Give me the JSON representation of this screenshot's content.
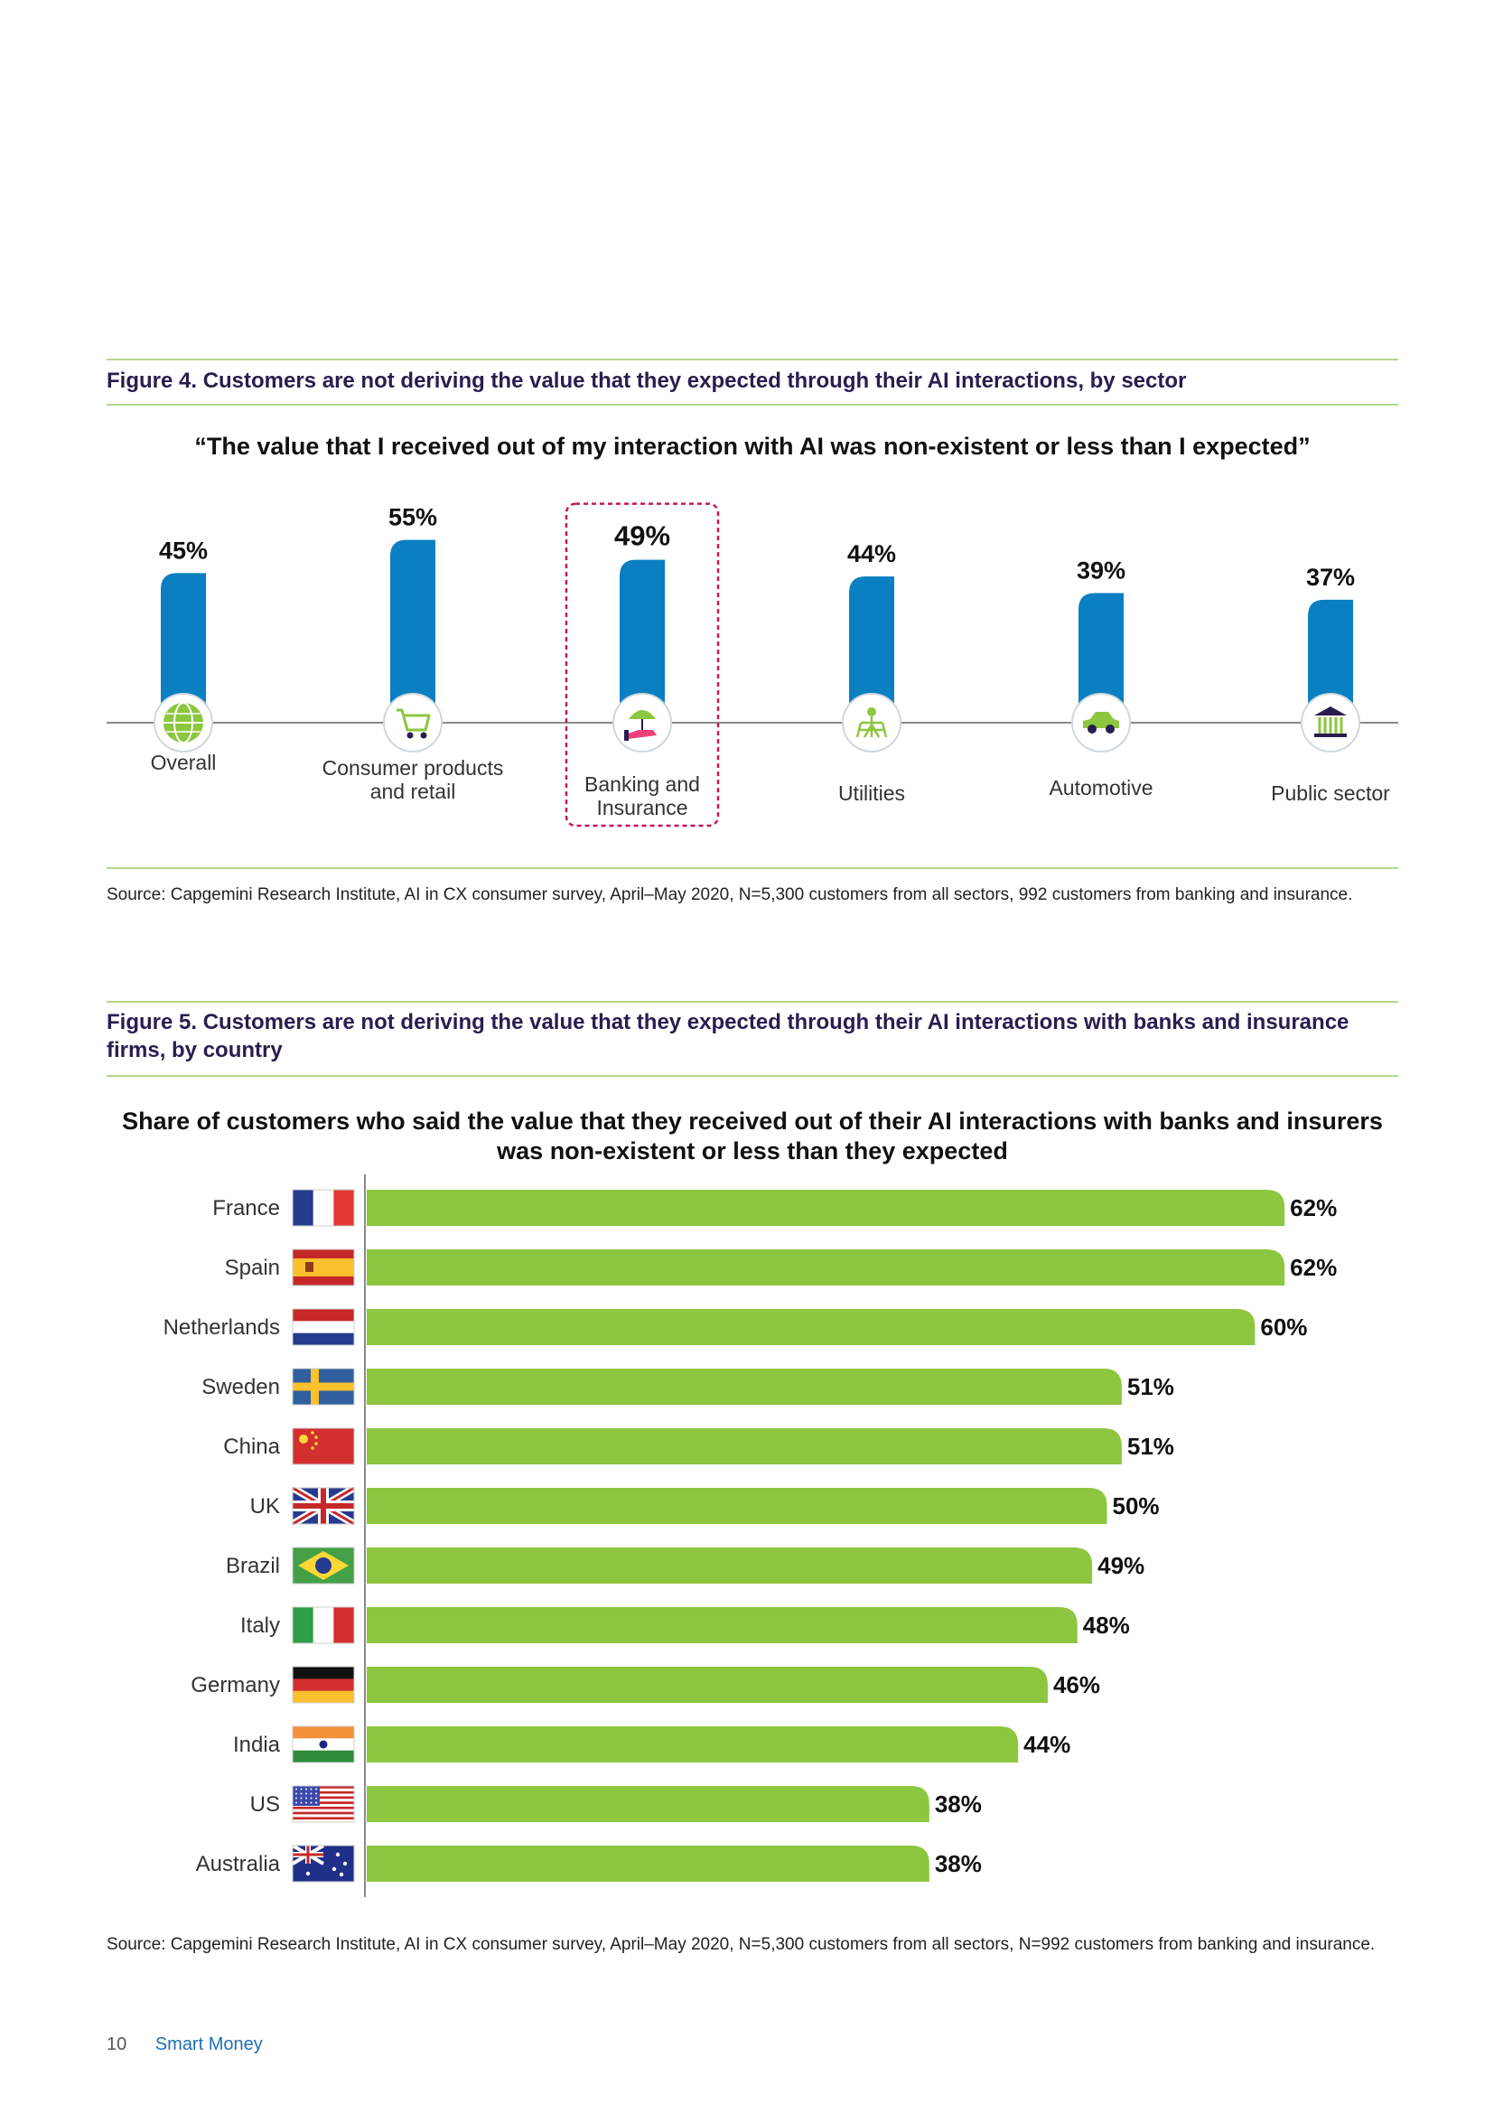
{
  "figure4": {
    "title": "Figure 4. Customers are not deriving the value that they expected through their AI interactions, by sector",
    "heading": "“The value that I received out of my interaction with AI was non-existent or less than I expected”",
    "source": "Source: Capgemini Research Institute, AI in CX consumer survey, April–May 2020, N=5,300 customers from all sectors, 992 customers from banking and insurance.",
    "highlight_category": "Banking and Insurance",
    "bar_color": "#0a7fc1",
    "icon_color": "#8dc63f",
    "highlight_border_color": "#c2185b",
    "icons": [
      "globe-icon",
      "shopping-cart-icon",
      "umbrella-hand-icon",
      "power-pylon-icon",
      "car-icon",
      "building-columns-icon"
    ]
  },
  "figure5": {
    "title": "Figure 5. Customers are not deriving the value that they expected through their AI interactions with banks and insurance firms, by country",
    "heading": "Share of customers who said the value that they received out of their AI interactions with banks and insurers was non-existent or less than they expected",
    "source": "Source: Capgemini Research Institute, AI in CX consumer survey, April–May 2020, N=5,300 customers from all sectors, N=992 customers from banking and insurance.",
    "bar_color": "#8dc63f",
    "flag_icons": [
      "france-flag-icon",
      "spain-flag-icon",
      "netherlands-flag-icon",
      "sweden-flag-icon",
      "china-flag-icon",
      "uk-flag-icon",
      "brazil-flag-icon",
      "italy-flag-icon",
      "germany-flag-icon",
      "india-flag-icon",
      "us-flag-icon",
      "australia-flag-icon"
    ]
  },
  "footer": {
    "page_number": "10",
    "report_title": "Smart Money"
  },
  "chart_data": [
    {
      "type": "bar",
      "orientation": "vertical",
      "categories": [
        "Overall",
        "Consumer products and retail",
        "Banking and Insurance",
        "Utilities",
        "Automotive",
        "Public sector"
      ],
      "values": [
        45,
        55,
        49,
        44,
        39,
        37
      ],
      "data_labels": [
        "45%",
        "55%",
        "49%",
        "44%",
        "39%",
        "37%"
      ],
      "title": "“The value that I received out of my interaction with AI was non-existent or less than I expected”",
      "xlabel": "",
      "ylabel": "",
      "unit": "%",
      "grid": false
    },
    {
      "type": "bar",
      "orientation": "horizontal",
      "categories": [
        "France",
        "Spain",
        "Netherlands",
        "Sweden",
        "China",
        "UK",
        "Brazil",
        "Italy",
        "Germany",
        "India",
        "US",
        "Australia"
      ],
      "values": [
        62,
        62,
        60,
        51,
        51,
        50,
        49,
        48,
        46,
        44,
        38,
        38
      ],
      "data_labels": [
        "62%",
        "62%",
        "60%",
        "51%",
        "51%",
        "50%",
        "49%",
        "48%",
        "46%",
        "44%",
        "38%",
        "38%"
      ],
      "title": "Share of customers who said the value that they received out of their AI interactions with banks and insurers was non-existent or less than they expected",
      "xlabel": "",
      "ylabel": "",
      "unit": "%",
      "grid": false
    }
  ]
}
